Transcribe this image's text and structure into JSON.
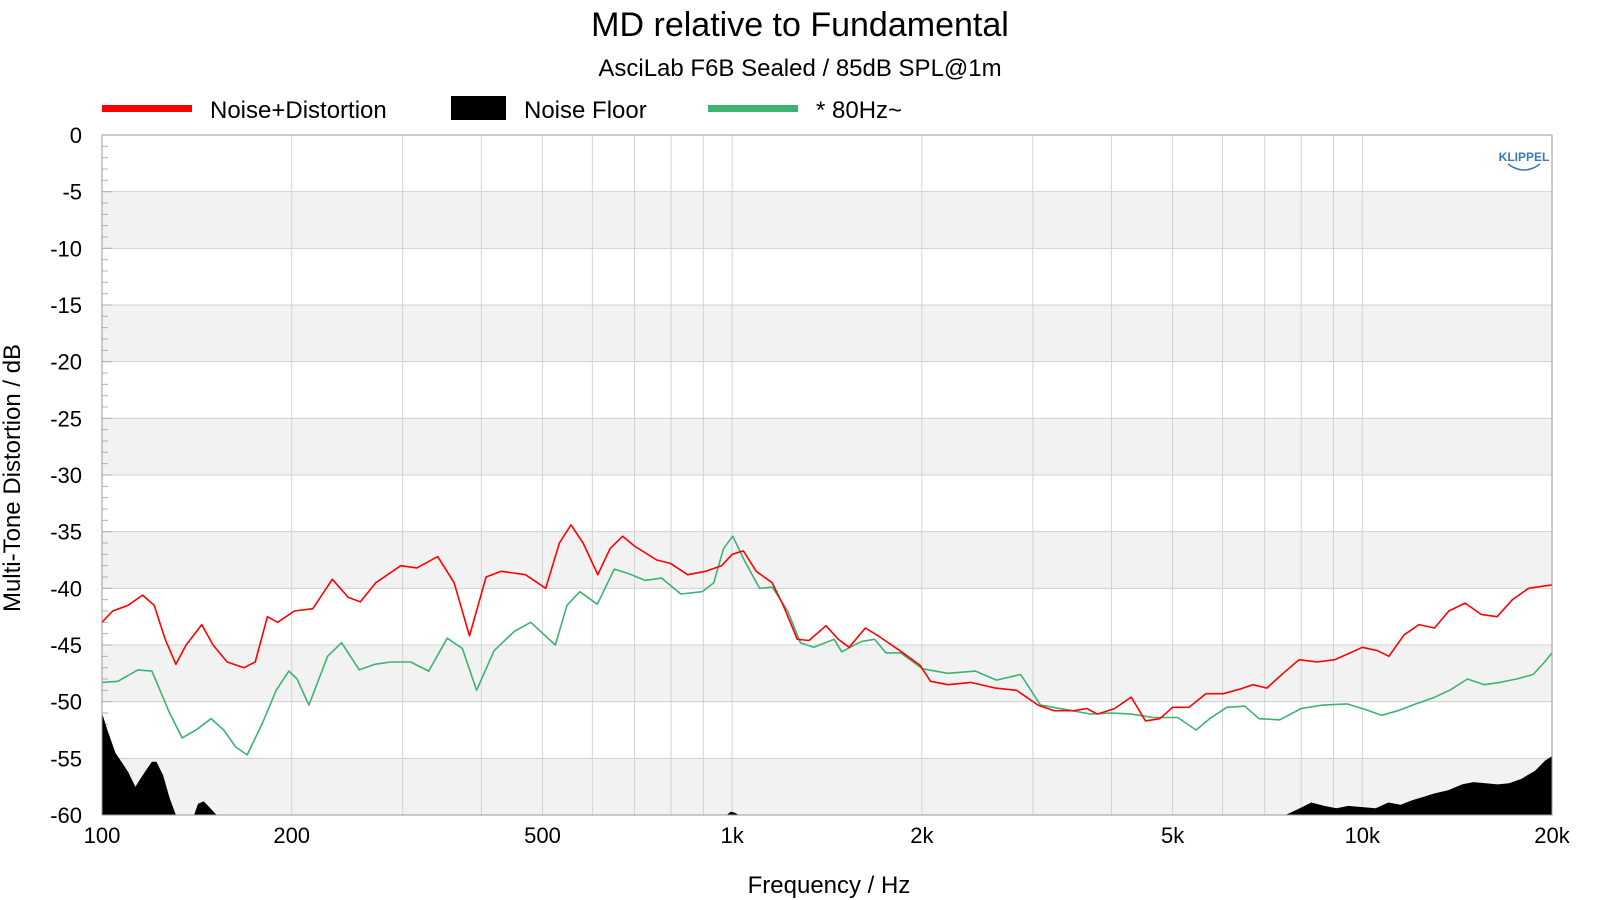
{
  "chart_data": {
    "type": "line",
    "title": "MD relative to Fundamental",
    "subtitle": "AsciLab F6B Sealed / 85dB SPL@1m",
    "xlabel": "Frequency / Hz",
    "ylabel": "Multi-Tone Distortion / dB",
    "xscale": "log",
    "xlim": [
      100,
      20000
    ],
    "ylim": [
      -60,
      0
    ],
    "grid": true,
    "legend_position": "top",
    "logo": "KLIPPEL",
    "x_ticks": [
      {
        "value": 100,
        "label": "100"
      },
      {
        "value": 200,
        "label": "200"
      },
      {
        "value": 500,
        "label": "500"
      },
      {
        "value": 1000,
        "label": "1k"
      },
      {
        "value": 2000,
        "label": "2k"
      },
      {
        "value": 5000,
        "label": "5k"
      },
      {
        "value": 10000,
        "label": "10k"
      },
      {
        "value": 20000,
        "label": "20k"
      }
    ],
    "y_ticks": [
      {
        "value": 0,
        "label": "0"
      },
      {
        "value": -5,
        "label": "-5"
      },
      {
        "value": -10,
        "label": "-10"
      },
      {
        "value": -15,
        "label": "-15"
      },
      {
        "value": -20,
        "label": "-20"
      },
      {
        "value": -25,
        "label": "-25"
      },
      {
        "value": -30,
        "label": "-30"
      },
      {
        "value": -35,
        "label": "-35"
      },
      {
        "value": -40,
        "label": "-40"
      },
      {
        "value": -45,
        "label": "-45"
      },
      {
        "value": -50,
        "label": "-50"
      },
      {
        "value": -55,
        "label": "-55"
      },
      {
        "value": -60,
        "label": "-60"
      }
    ],
    "series": [
      {
        "name": "Noise+Distortion",
        "color": "#ff0000",
        "style": "line",
        "points": [
          [
            100,
            -43
          ],
          [
            104,
            -42
          ],
          [
            110,
            -41.5
          ],
          [
            116,
            -40.6
          ],
          [
            121,
            -41.5
          ],
          [
            126,
            -44.5
          ],
          [
            131,
            -46.7
          ],
          [
            136,
            -45
          ],
          [
            144,
            -43.2
          ],
          [
            150,
            -45
          ],
          [
            158,
            -46.5
          ],
          [
            168,
            -47
          ],
          [
            175,
            -46.5
          ],
          [
            183,
            -42.5
          ],
          [
            190,
            -43
          ],
          [
            202,
            -42
          ],
          [
            216,
            -41.8
          ],
          [
            232,
            -39.2
          ],
          [
            246,
            -40.8
          ],
          [
            257,
            -41.2
          ],
          [
            272,
            -39.5
          ],
          [
            298,
            -38
          ],
          [
            316,
            -38.2
          ],
          [
            341,
            -37.2
          ],
          [
            362,
            -39.5
          ],
          [
            383,
            -44.2
          ],
          [
            407,
            -39
          ],
          [
            430,
            -38.5
          ],
          [
            470,
            -38.8
          ],
          [
            506,
            -40
          ],
          [
            532,
            -36
          ],
          [
            555,
            -34.4
          ],
          [
            580,
            -36
          ],
          [
            612,
            -38.8
          ],
          [
            640,
            -36.5
          ],
          [
            670,
            -35.4
          ],
          [
            701,
            -36.3
          ],
          [
            759,
            -37.5
          ],
          [
            798,
            -37.8
          ],
          [
            850,
            -38.8
          ],
          [
            908,
            -38.5
          ],
          [
            962,
            -38
          ],
          [
            1000,
            -37
          ],
          [
            1042,
            -36.7
          ],
          [
            1092,
            -38.5
          ],
          [
            1157,
            -39.5
          ],
          [
            1205,
            -41.5
          ],
          [
            1269,
            -44.5
          ],
          [
            1324,
            -44.6
          ],
          [
            1409,
            -43.3
          ],
          [
            1474,
            -44.5
          ],
          [
            1533,
            -45.2
          ],
          [
            1627,
            -43.5
          ],
          [
            1706,
            -44.2
          ],
          [
            1846,
            -45.5
          ],
          [
            1988,
            -46.8
          ],
          [
            2064,
            -48.2
          ],
          [
            2201,
            -48.5
          ],
          [
            2392,
            -48.3
          ],
          [
            2618,
            -48.8
          ],
          [
            2827,
            -49
          ],
          [
            3057,
            -50.3
          ],
          [
            3244,
            -50.8
          ],
          [
            3489,
            -50.8
          ],
          [
            3654,
            -50.6
          ],
          [
            3798,
            -51.1
          ],
          [
            4047,
            -50.6
          ],
          [
            4298,
            -49.6
          ],
          [
            4528,
            -51.7
          ],
          [
            4772,
            -51.5
          ],
          [
            5000,
            -50.5
          ],
          [
            5311,
            -50.5
          ],
          [
            5645,
            -49.3
          ],
          [
            6020,
            -49.3
          ],
          [
            6386,
            -48.9
          ],
          [
            6702,
            -48.5
          ],
          [
            7057,
            -48.8
          ],
          [
            7488,
            -47.5
          ],
          [
            7939,
            -46.3
          ],
          [
            8476,
            -46.5
          ],
          [
            9044,
            -46.3
          ],
          [
            9568,
            -45.7
          ],
          [
            10000,
            -45.2
          ],
          [
            10572,
            -45.5
          ],
          [
            11019,
            -46
          ],
          [
            11655,
            -44.1
          ],
          [
            12303,
            -43.2
          ],
          [
            13017,
            -43.5
          ],
          [
            13719,
            -42
          ],
          [
            14562,
            -41.3
          ],
          [
            15435,
            -42.3
          ],
          [
            16365,
            -42.5
          ],
          [
            17305,
            -41
          ],
          [
            18360,
            -40
          ],
          [
            19400,
            -39.8
          ],
          [
            20000,
            -39.7
          ]
        ]
      },
      {
        "name": "* 80Hz~",
        "color": "#3cb371",
        "style": "line",
        "points": [
          [
            100,
            -48.3
          ],
          [
            106,
            -48.2
          ],
          [
            114,
            -47.2
          ],
          [
            120,
            -47.3
          ],
          [
            128,
            -51
          ],
          [
            134,
            -53.2
          ],
          [
            141,
            -52.5
          ],
          [
            149,
            -51.5
          ],
          [
            156,
            -52.5
          ],
          [
            163,
            -54
          ],
          [
            170,
            -54.7
          ],
          [
            180,
            -51.8
          ],
          [
            189,
            -49
          ],
          [
            198,
            -47.3
          ],
          [
            204,
            -48
          ],
          [
            213,
            -50.3
          ],
          [
            228,
            -46
          ],
          [
            240,
            -44.8
          ],
          [
            256,
            -47.2
          ],
          [
            271,
            -46.7
          ],
          [
            287,
            -46.5
          ],
          [
            309,
            -46.5
          ],
          [
            330,
            -47.3
          ],
          [
            353,
            -44.4
          ],
          [
            373,
            -45.3
          ],
          [
            393,
            -49
          ],
          [
            419,
            -45.5
          ],
          [
            451,
            -43.8
          ],
          [
            479,
            -43
          ],
          [
            524,
            -45
          ],
          [
            547,
            -41.5
          ],
          [
            573,
            -40.3
          ],
          [
            611,
            -41.4
          ],
          [
            650,
            -38.3
          ],
          [
            685,
            -38.7
          ],
          [
            727,
            -39.3
          ],
          [
            773,
            -39.1
          ],
          [
            829,
            -40.5
          ],
          [
            896,
            -40.3
          ],
          [
            935,
            -39.5
          ],
          [
            969,
            -36.5
          ],
          [
            1002,
            -35.4
          ],
          [
            1045,
            -37.5
          ],
          [
            1105,
            -40
          ],
          [
            1158,
            -39.9
          ],
          [
            1225,
            -42
          ],
          [
            1283,
            -44.8
          ],
          [
            1347,
            -45.2
          ],
          [
            1452,
            -44.5
          ],
          [
            1492,
            -45.6
          ],
          [
            1602,
            -44.7
          ],
          [
            1683,
            -44.5
          ],
          [
            1754,
            -45.7
          ],
          [
            1852,
            -45.7
          ],
          [
            2005,
            -47.1
          ],
          [
            2199,
            -47.5
          ],
          [
            2433,
            -47.3
          ],
          [
            2627,
            -48.1
          ],
          [
            2870,
            -47.6
          ],
          [
            3085,
            -50.3
          ],
          [
            3464,
            -50.8
          ],
          [
            3711,
            -51.1
          ],
          [
            3998,
            -51
          ],
          [
            4299,
            -51.1
          ],
          [
            4658,
            -51.4
          ],
          [
            5094,
            -51.4
          ],
          [
            5449,
            -52.5
          ],
          [
            5723,
            -51.5
          ],
          [
            6096,
            -50.5
          ],
          [
            6510,
            -50.4
          ],
          [
            6857,
            -51.5
          ],
          [
            7396,
            -51.6
          ],
          [
            8000,
            -50.6
          ],
          [
            8656,
            -50.3
          ],
          [
            9461,
            -50.2
          ],
          [
            10124,
            -50.7
          ],
          [
            10729,
            -51.2
          ],
          [
            11395,
            -50.8
          ],
          [
            12164,
            -50.2
          ],
          [
            12907,
            -49.7
          ],
          [
            13755,
            -49
          ],
          [
            14687,
            -48
          ],
          [
            15616,
            -48.5
          ],
          [
            16539,
            -48.3
          ],
          [
            17575,
            -48
          ],
          [
            18664,
            -47.6
          ],
          [
            19467,
            -46.5
          ],
          [
            20000,
            -45.7
          ]
        ]
      },
      {
        "name": "Noise Floor",
        "color": "#000000",
        "style": "area",
        "points": [
          [
            100,
            -51
          ],
          [
            102,
            -52.5
          ],
          [
            105,
            -54.5
          ],
          [
            110,
            -56.2
          ],
          [
            113,
            -57.5
          ],
          [
            116,
            -56.5
          ],
          [
            120,
            -55.3
          ],
          [
            122,
            -55.3
          ],
          [
            125,
            -56.5
          ],
          [
            128,
            -58.5
          ],
          [
            131,
            -60
          ],
          [
            140,
            -60
          ],
          [
            142,
            -59
          ],
          [
            145,
            -58.8
          ],
          [
            148,
            -59.3
          ],
          [
            152,
            -60
          ],
          [
            980,
            -60
          ],
          [
            995,
            -59.7
          ],
          [
            1010,
            -59.8
          ],
          [
            1025,
            -60
          ],
          [
            7550,
            -60
          ],
          [
            7900,
            -59.5
          ],
          [
            8300,
            -58.9
          ],
          [
            8700,
            -59.2
          ],
          [
            9100,
            -59.4
          ],
          [
            9500,
            -59.2
          ],
          [
            10000,
            -59.3
          ],
          [
            10500,
            -59.4
          ],
          [
            11000,
            -58.9
          ],
          [
            11500,
            -59.1
          ],
          [
            12000,
            -58.7
          ],
          [
            12500,
            -58.4
          ],
          [
            13000,
            -58.1
          ],
          [
            13700,
            -57.8
          ],
          [
            14400,
            -57.3
          ],
          [
            15000,
            -57.1
          ],
          [
            15700,
            -57.2
          ],
          [
            16400,
            -57.3
          ],
          [
            17100,
            -57.2
          ],
          [
            17900,
            -56.8
          ],
          [
            18800,
            -56.1
          ],
          [
            19500,
            -55.2
          ],
          [
            20000,
            -54.8
          ],
          [
            20000,
            -60
          ],
          [
            100,
            -60
          ]
        ]
      }
    ]
  }
}
